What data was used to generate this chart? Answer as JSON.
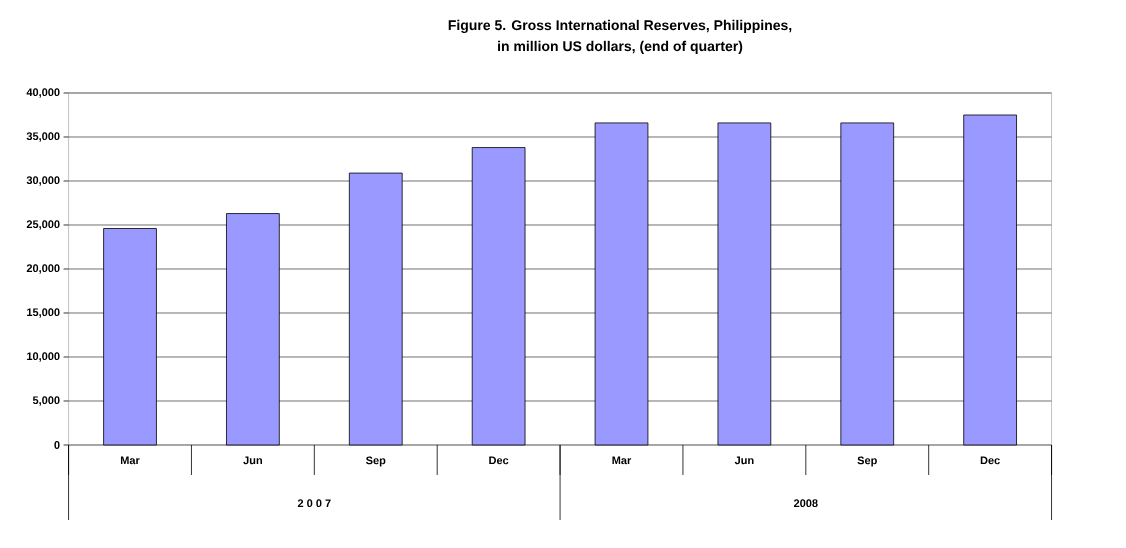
{
  "chart_data": {
    "type": "bar",
    "title": "Figure 5. Gross International Reserves, Philippines,",
    "subtitle": "in million US dollars,  (end of quarter)",
    "categories": [
      "Mar",
      "Jun",
      "Sep",
      "Dec",
      "Mar",
      "Jun",
      "Sep",
      "Dec"
    ],
    "values": [
      24600,
      26300,
      30900,
      33800,
      36600,
      36600,
      36600,
      37500
    ],
    "color": "#9999ff",
    "ylim": [
      0,
      40000
    ],
    "yticks": [
      {
        "value": 0,
        "label": "0"
      },
      {
        "value": 5000,
        "label": "5,000"
      },
      {
        "value": 10000,
        "label": "10,000"
      },
      {
        "value": 15000,
        "label": "15,000"
      },
      {
        "value": 20000,
        "label": "20,000"
      },
      {
        "value": 25000,
        "label": "25,000"
      },
      {
        "value": 30000,
        "label": "30,000"
      },
      {
        "value": 35000,
        "label": "35,000"
      },
      {
        "value": 40000,
        "label": "40,000"
      }
    ],
    "grid": "y",
    "annotations": [
      "2 0 0 7",
      "2008"
    ]
  }
}
